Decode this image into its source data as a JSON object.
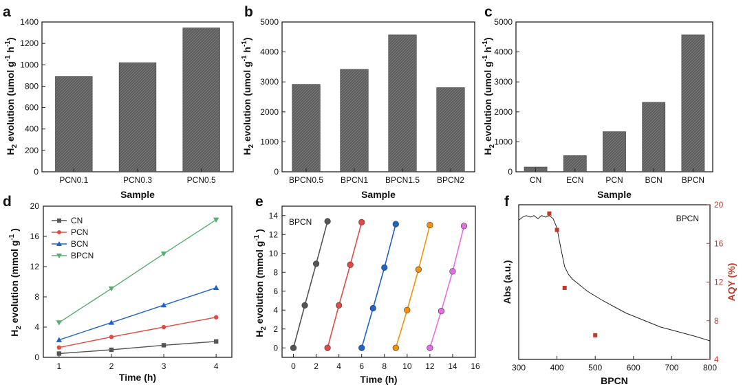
{
  "figure": {
    "colors": {
      "bar": "#5d5d5d",
      "CN": "#555555",
      "PCN": "#e04b43",
      "BCN": "#1f62c9",
      "BPCN": "#56ad6e",
      "cycle": [
        "#555555",
        "#e04b43",
        "#1f62c9",
        "#f2920a",
        "#e56ee5"
      ],
      "aqy": "#c0392b"
    }
  },
  "chart_data": [
    {
      "panel": "a",
      "type": "bar",
      "categories": [
        "PCN0.1",
        "PCN0.3",
        "PCN0.5"
      ],
      "values": [
        890,
        1020,
        1345
      ],
      "xlabel": "Sample",
      "ylabel": "H2 evolution (umol g-1 h-1)",
      "ylim": [
        0,
        1400
      ],
      "yticks": [
        0,
        200,
        400,
        600,
        800,
        1000,
        1200,
        1400
      ]
    },
    {
      "panel": "b",
      "type": "bar",
      "categories": [
        "BPCN0.5",
        "BPCN1",
        "BPCN1.5",
        "BPCN2"
      ],
      "values": [
        2920,
        3420,
        4570,
        2810
      ],
      "xlabel": "Sample",
      "ylabel": "H2 evolution (umol g-1 h-1)",
      "ylim": [
        0,
        5000
      ],
      "yticks": [
        0,
        1000,
        2000,
        3000,
        4000,
        5000
      ]
    },
    {
      "panel": "c",
      "type": "bar",
      "categories": [
        "CN",
        "ECN",
        "PCN",
        "BCN",
        "BPCN"
      ],
      "values": [
        160,
        540,
        1340,
        2320,
        4570
      ],
      "xlabel": "Sample",
      "ylabel": "H2 evolution (umol g-1 h-1)",
      "ylim": [
        0,
        5000
      ],
      "yticks": [
        0,
        1000,
        2000,
        3000,
        4000,
        5000
      ]
    },
    {
      "panel": "d",
      "type": "line",
      "x": [
        1,
        2,
        3,
        4
      ],
      "series": [
        {
          "name": "CN",
          "values": [
            0.5,
            1.0,
            1.6,
            2.1
          ],
          "marker": "square"
        },
        {
          "name": "PCN",
          "values": [
            1.3,
            2.7,
            4.0,
            5.3
          ],
          "marker": "circle"
        },
        {
          "name": "BCN",
          "values": [
            2.3,
            4.6,
            6.9,
            9.2
          ],
          "marker": "triangle-up"
        },
        {
          "name": "BPCN",
          "values": [
            4.6,
            9.1,
            13.7,
            18.2
          ],
          "marker": "triangle-down"
        }
      ],
      "xlabel": "Time (h)",
      "ylabel": "H2 evolution (mmol g-1 )",
      "xlim": [
        0.7,
        4.3
      ],
      "ylim": [
        0,
        20
      ],
      "xticks": [
        1,
        2,
        3,
        4
      ],
      "yticks": [
        0,
        4,
        8,
        12,
        16,
        20
      ],
      "legend": "top-left"
    },
    {
      "panel": "e",
      "type": "line",
      "annotation": "BPCN",
      "cycles": [
        {
          "x": [
            0,
            1,
            2,
            3
          ],
          "y": [
            0,
            4.5,
            8.9,
            13.4
          ]
        },
        {
          "x": [
            3,
            4,
            5,
            6
          ],
          "y": [
            0,
            4.5,
            8.8,
            13.3
          ]
        },
        {
          "x": [
            6,
            7,
            8,
            9
          ],
          "y": [
            0,
            4.2,
            8.5,
            13.1
          ]
        },
        {
          "x": [
            9,
            10,
            11,
            12
          ],
          "y": [
            0,
            4.0,
            8.3,
            13.0
          ]
        },
        {
          "x": [
            12,
            13,
            14,
            15
          ],
          "y": [
            0,
            3.9,
            8.1,
            12.9
          ]
        }
      ],
      "xlabel": "Time (h)",
      "ylabel": "H2 evolution (mmol g-1 )",
      "xlim": [
        -1,
        16
      ],
      "ylim": [
        -1,
        15
      ],
      "xticks": [
        0,
        2,
        4,
        6,
        8,
        10,
        12,
        14,
        16
      ],
      "yticks": [
        0,
        2,
        4,
        6,
        8,
        10,
        12,
        14
      ]
    },
    {
      "panel": "f",
      "type": "line",
      "annotation": "BPCN",
      "abs_curve": {
        "x": [
          300,
          310,
          320,
          330,
          340,
          350,
          360,
          370,
          380,
          390,
          400,
          410,
          420,
          430,
          440,
          460,
          480,
          500,
          520,
          550,
          580,
          610,
          640,
          670,
          700,
          730,
          760,
          800
        ],
        "y": [
          0.9,
          0.92,
          0.93,
          0.92,
          0.93,
          0.91,
          0.93,
          0.92,
          0.93,
          0.91,
          0.85,
          0.72,
          0.6,
          0.55,
          0.52,
          0.48,
          0.44,
          0.41,
          0.38,
          0.34,
          0.3,
          0.27,
          0.24,
          0.21,
          0.19,
          0.17,
          0.15,
          0.12
        ]
      },
      "aqy_points": {
        "x": [
          380,
          400,
          420,
          500
        ],
        "y": [
          19.1,
          17.4,
          11.4,
          6.5
        ]
      },
      "xlabel": "BPCN",
      "ylabel": "Abs (a.u.)",
      "y2label": "AQY (%)",
      "xlim": [
        300,
        800
      ],
      "xticks": [
        300,
        400,
        500,
        600,
        700,
        800
      ],
      "y2lim": [
        4,
        20
      ],
      "y2ticks": [
        4,
        8,
        12,
        16,
        20
      ]
    }
  ],
  "labels": {
    "a": "a",
    "b": "b",
    "c": "c",
    "d": "d",
    "e": "e",
    "f": "f",
    "h2": "H",
    "sub2": "2",
    "ev_umol": " evolution (umol g",
    "ev_mmol": " evolution (mmol g",
    "neg1": "-1",
    "h": " h",
    "close": ")",
    "close_sp": " )"
  }
}
